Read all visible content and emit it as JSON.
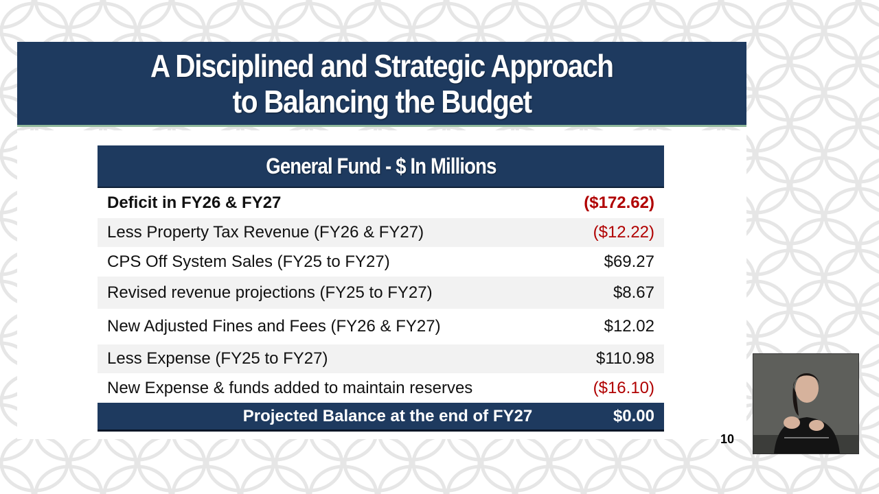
{
  "slide": {
    "title_line1": "A Disciplined and Strategic Approach",
    "title_line2": "to Balancing the Budget",
    "page_number": "10"
  },
  "table": {
    "header": "General Fund - $ In Millions",
    "rows": [
      {
        "label": "Deficit in FY26 & FY27",
        "value": "($172.62)"
      },
      {
        "label": "Less Property Tax Revenue (FY26 & FY27)",
        "value": "($12.22)"
      },
      {
        "label": "CPS Off System Sales (FY25 to FY27)",
        "value": "$69.27"
      },
      {
        "label": "Revised revenue projections (FY25 to FY27)",
        "value": "$8.67"
      },
      {
        "label": "New Adjusted Fines and Fees (FY26 & FY27)",
        "value": "$12.02"
      },
      {
        "label": "Less Expense (FY25 to FY27)",
        "value": "$110.98"
      },
      {
        "label": "New Expense & funds added to maintain reserves",
        "value": "($16.10)"
      }
    ],
    "total": {
      "label": "Projected Balance at the end of FY27",
      "value": "$0.00"
    }
  },
  "colors": {
    "header_navy": "#1e3a5f",
    "negative_red": "#b00000",
    "accent_green": "#8fb89a"
  },
  "video_inset": {
    "icon": "sign-language-interpreter-video"
  }
}
